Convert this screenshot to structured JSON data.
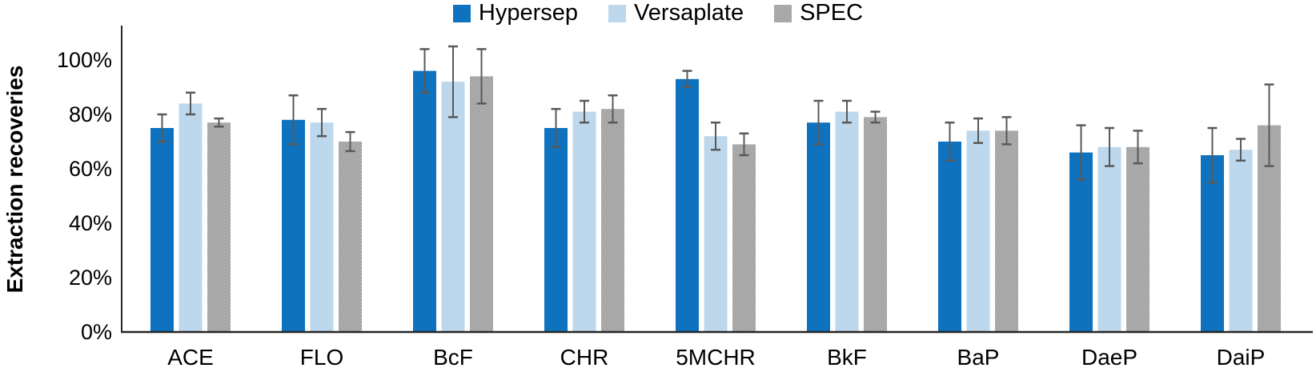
{
  "chart_data": {
    "type": "bar",
    "title": "",
    "xlabel": "",
    "ylabel": "Extraction recoveries",
    "categories": [
      "ACE",
      "FLO",
      "BcF",
      "CHR",
      "5MCHR",
      "BkF",
      "BaP",
      "DaeP",
      "DaiP"
    ],
    "series": [
      {
        "name": "Hypersep",
        "color": "#0F72BE",
        "pattern": "solid",
        "values": [
          75,
          78,
          96,
          75,
          93,
          77,
          70,
          66,
          65
        ],
        "errors": [
          5,
          9,
          8,
          7,
          3,
          8,
          7,
          10,
          10
        ]
      },
      {
        "name": "Versaplate",
        "color": "#BDD7EC",
        "pattern": "solid",
        "values": [
          84,
          77,
          92,
          81,
          72,
          81,
          74,
          68,
          67
        ],
        "errors": [
          4,
          5,
          13,
          4,
          5,
          4,
          4.5,
          7,
          4
        ]
      },
      {
        "name": "SPEC",
        "color": "#B3B3B3",
        "pattern": "dots",
        "values": [
          77,
          70,
          94,
          82,
          69,
          79,
          74,
          68,
          76
        ],
        "errors": [
          1.5,
          3.5,
          10,
          5,
          4,
          2,
          5,
          6,
          15
        ]
      }
    ],
    "y_ticks": [
      {
        "value": 0,
        "label": "0%"
      },
      {
        "value": 20,
        "label": "20%"
      },
      {
        "value": 40,
        "label": "40%"
      },
      {
        "value": 60,
        "label": "60%"
      },
      {
        "value": 80,
        "label": "80%"
      },
      {
        "value": 100,
        "label": "100%"
      }
    ],
    "ylim": [
      0,
      112
    ],
    "grid": false,
    "legend_position": "top-center",
    "error_bar_color": "#595959",
    "axis_color": "#262626"
  }
}
